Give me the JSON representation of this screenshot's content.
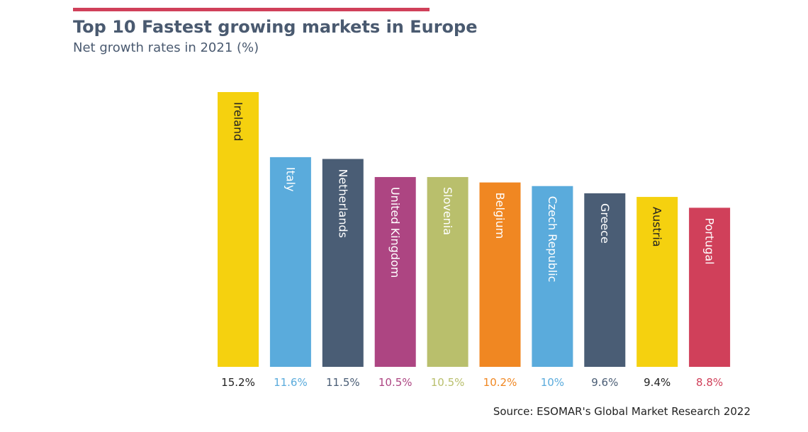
{
  "header": {
    "title": "Top 10 Fastest growing markets in Europe",
    "subtitle": "Net growth rates in 2021 (%)"
  },
  "source": "Source: ESOMAR's Global Market Research 2022",
  "colors": {
    "accent_rule": "#d0405a",
    "title": "#4a5a70"
  },
  "chart_data": {
    "type": "bar",
    "title": "Top 10 Fastest growing markets in Europe",
    "subtitle": "Net growth rates in 2021 (%)",
    "categories": [
      "Ireland",
      "Italy",
      "Netherlands",
      "United Kingdom",
      "Slovenia",
      "Belgium",
      "Czech Republic",
      "Greece",
      "Austria",
      "Portugal"
    ],
    "values": [
      15.2,
      11.6,
      11.5,
      10.5,
      10.5,
      10.2,
      10,
      9.6,
      9.4,
      8.8
    ],
    "value_labels": [
      "15.2%",
      "11.6%",
      "11.5%",
      "10.5%",
      "10.5%",
      "10.2%",
      "10%",
      "9.6%",
      "9.4%",
      "8.8%"
    ],
    "bar_colors": [
      "#f5d10f",
      "#5aabdc",
      "#4a5d75",
      "#ad4582",
      "#b9bf6c",
      "#f08722",
      "#5aabdc",
      "#4a5d75",
      "#f5d10f",
      "#d0405a"
    ],
    "bar_label_colors": [
      "#222222",
      "#ffffff",
      "#ffffff",
      "#ffffff",
      "#ffffff",
      "#ffffff",
      "#ffffff",
      "#ffffff",
      "#222222",
      "#ffffff"
    ],
    "value_label_colors": [
      "#222222",
      "#5aabdc",
      "#4a5d75",
      "#ad4582",
      "#b9bf6c",
      "#f08722",
      "#5aabdc",
      "#4a5d75",
      "#222222",
      "#d0405a"
    ],
    "xlabel": "",
    "ylabel": "",
    "ylim": [
      0,
      15.2
    ],
    "grid": false,
    "legend": "none"
  }
}
